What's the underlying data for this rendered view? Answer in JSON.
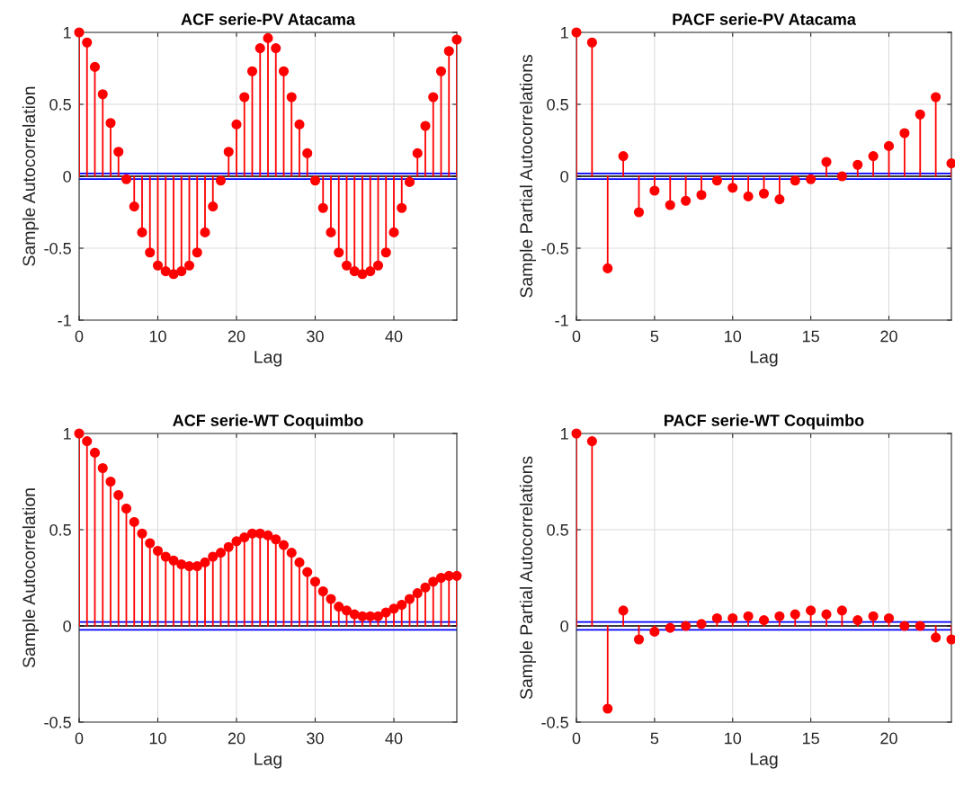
{
  "chart_data": [
    {
      "type": "lollipop",
      "title": "ACF serie-PV Atacama",
      "xlabel": "Lag",
      "ylabel": "Sample Autocorrelation",
      "x": [
        0,
        1,
        2,
        3,
        4,
        5,
        6,
        7,
        8,
        9,
        10,
        11,
        12,
        13,
        14,
        15,
        16,
        17,
        18,
        19,
        20,
        21,
        22,
        23,
        24,
        25,
        26,
        27,
        28,
        29,
        30,
        31,
        32,
        33,
        34,
        35,
        36,
        37,
        38,
        39,
        40,
        41,
        42,
        43,
        44,
        45,
        46,
        47,
        48
      ],
      "values": [
        1.0,
        0.93,
        0.76,
        0.57,
        0.37,
        0.17,
        -0.02,
        -0.21,
        -0.39,
        -0.53,
        -0.62,
        -0.66,
        -0.68,
        -0.66,
        -0.62,
        -0.53,
        -0.39,
        -0.21,
        -0.03,
        0.17,
        0.36,
        0.55,
        0.73,
        0.89,
        0.96,
        0.89,
        0.73,
        0.55,
        0.36,
        0.16,
        -0.03,
        -0.22,
        -0.39,
        -0.53,
        -0.62,
        -0.66,
        -0.68,
        -0.66,
        -0.62,
        -0.53,
        -0.39,
        -0.22,
        -0.04,
        0.16,
        0.35,
        0.55,
        0.73,
        0.87,
        0.95
      ],
      "color": "#ff0000",
      "marker": "circle",
      "xlim": [
        0,
        48
      ],
      "xticks": [
        0,
        10,
        20,
        30,
        40
      ],
      "ylim": [
        -1,
        1
      ],
      "yticks": [
        -1,
        -0.5,
        0,
        0.5,
        1
      ],
      "ref_lines": [
        {
          "axis": "y",
          "value": 0.02,
          "color": "#0000ff"
        },
        {
          "axis": "y",
          "value": -0.02,
          "color": "#0000ff"
        }
      ],
      "grid": true
    },
    {
      "type": "lollipop",
      "title": "PACF serie-PV Atacama",
      "xlabel": "Lag",
      "ylabel": "Sample Partial Autocorrelations",
      "x": [
        0,
        1,
        2,
        3,
        4,
        5,
        6,
        7,
        8,
        9,
        10,
        11,
        12,
        13,
        14,
        15,
        16,
        17,
        18,
        19,
        20,
        21,
        22,
        23,
        24
      ],
      "values": [
        1.0,
        0.93,
        -0.64,
        0.14,
        -0.25,
        -0.1,
        -0.2,
        -0.17,
        -0.13,
        -0.03,
        -0.08,
        -0.14,
        -0.12,
        -0.16,
        -0.03,
        -0.02,
        0.1,
        0.0,
        0.08,
        0.14,
        0.21,
        0.3,
        0.43,
        0.55,
        0.09
      ],
      "color": "#ff0000",
      "marker": "circle",
      "xlim": [
        0,
        24
      ],
      "xticks": [
        0,
        5,
        10,
        15,
        20
      ],
      "ylim": [
        -1,
        1
      ],
      "yticks": [
        -1,
        -0.5,
        0,
        0.5,
        1
      ],
      "ref_lines": [
        {
          "axis": "y",
          "value": 0.02,
          "color": "#0000ff"
        },
        {
          "axis": "y",
          "value": -0.02,
          "color": "#0000ff"
        }
      ],
      "grid": true
    },
    {
      "type": "lollipop",
      "title": "ACF serie-WT Coquimbo",
      "xlabel": "Lag",
      "ylabel": "Sample Autocorrelation",
      "x": [
        0,
        1,
        2,
        3,
        4,
        5,
        6,
        7,
        8,
        9,
        10,
        11,
        12,
        13,
        14,
        15,
        16,
        17,
        18,
        19,
        20,
        21,
        22,
        23,
        24,
        25,
        26,
        27,
        28,
        29,
        30,
        31,
        32,
        33,
        34,
        35,
        36,
        37,
        38,
        39,
        40,
        41,
        42,
        43,
        44,
        45,
        46,
        47,
        48
      ],
      "values": [
        1.0,
        0.96,
        0.9,
        0.82,
        0.75,
        0.68,
        0.61,
        0.54,
        0.48,
        0.43,
        0.39,
        0.36,
        0.34,
        0.32,
        0.31,
        0.31,
        0.33,
        0.36,
        0.38,
        0.41,
        0.44,
        0.46,
        0.48,
        0.48,
        0.47,
        0.45,
        0.42,
        0.38,
        0.33,
        0.28,
        0.23,
        0.18,
        0.14,
        0.1,
        0.08,
        0.06,
        0.05,
        0.05,
        0.05,
        0.07,
        0.09,
        0.11,
        0.14,
        0.17,
        0.2,
        0.23,
        0.25,
        0.26,
        0.26
      ],
      "color": "#ff0000",
      "marker": "circle",
      "xlim": [
        0,
        48
      ],
      "xticks": [
        0,
        10,
        20,
        30,
        40
      ],
      "ylim": [
        -0.5,
        1
      ],
      "yticks": [
        -0.5,
        0,
        0.5,
        1
      ],
      "ref_lines": [
        {
          "axis": "y",
          "value": 0.02,
          "color": "#0000ff"
        },
        {
          "axis": "y",
          "value": -0.02,
          "color": "#0000ff"
        }
      ],
      "grid": true
    },
    {
      "type": "lollipop",
      "title": "PACF serie-WT Coquimbo",
      "xlabel": "Lag",
      "ylabel": "Sample Partial Autocorrelations",
      "x": [
        0,
        1,
        2,
        3,
        4,
        5,
        6,
        7,
        8,
        9,
        10,
        11,
        12,
        13,
        14,
        15,
        16,
        17,
        18,
        19,
        20,
        21,
        22,
        23,
        24
      ],
      "values": [
        1.0,
        0.96,
        -0.43,
        0.08,
        -0.07,
        -0.03,
        -0.01,
        0.0,
        0.01,
        0.04,
        0.04,
        0.05,
        0.03,
        0.05,
        0.06,
        0.08,
        0.06,
        0.08,
        0.03,
        0.05,
        0.04,
        0.0,
        0.0,
        -0.06,
        -0.07
      ],
      "color": "#ff0000",
      "marker": "circle",
      "xlim": [
        0,
        24
      ],
      "xticks": [
        0,
        5,
        10,
        15,
        20
      ],
      "ylim": [
        -0.5,
        1
      ],
      "yticks": [
        -0.5,
        0,
        0.5,
        1
      ],
      "ref_lines": [
        {
          "axis": "y",
          "value": 0.02,
          "color": "#0000ff"
        },
        {
          "axis": "y",
          "value": -0.02,
          "color": "#0000ff"
        }
      ],
      "grid": true
    }
  ]
}
